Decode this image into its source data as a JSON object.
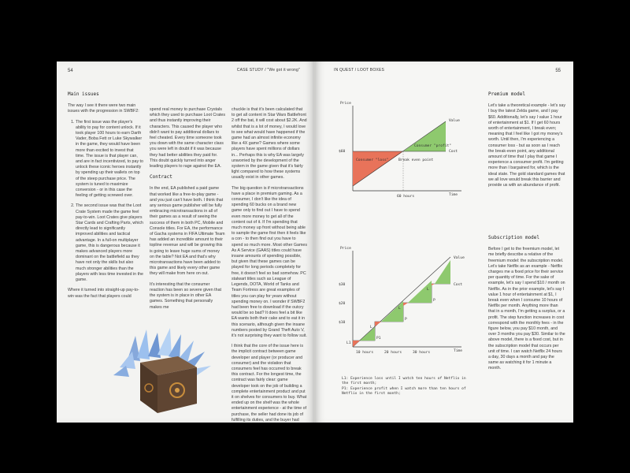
{
  "left_page": {
    "page_number": "54",
    "header": "CASE STUDY / \"We got it wrong\"",
    "col1": {
      "heading": "Main issues",
      "intro": "The way I see it there were two main issues with the progression in SWBF2:",
      "items": [
        "The first issue was the player's ability to pay for content unlock. If it took player 100 hours to earn Darth Vader, Boba Fett or Luke Skywalker in the game, they would have been more than excited to invest that time. The issue is that player can, and are in fact incentivized, to pay to unlock these iconic heroes instantly by spending up their wallets on top of the steep purchase price. The system is tuned to maximize conversion - or in this case the feeling of getting screwed over.",
        "The second issue was that the Loot Crate System made the game feel pay-to-win. Loot Crates give players Star Cards and Crafting Parts, which directly lead to significantly improved abilities and tactical advantage. In a full-on multiplayer game, this is dangerous because it makes advanced players more dominant on the battlefield as they have not only the skills but also much stronger abilities than the players with less time invested in the game."
      ],
      "outro": "Where it turned into straight-up pay-to-win was the fact that players could"
    },
    "col2": {
      "p1": "spend real money to purchase Crystals which they used to purchase Loot Crates and thus instantly improving their characters. This caused the player who didn't want to pay additional dollars to feel cheated. Every time someone took you down with the same character class you were left in doubt if it was because they had better abilities they paid for. This doubt quickly turned into anger leading players to rage against the EA.",
      "heading": "Contract",
      "p2": "In the end, EA published a paid game that worked like a free-to-play game - and you just can't have both. I think that any serious game publisher will be fully embracing microtransactions in all of their games as a result of seeing the success of them in both PC, Mobile and Console titles. For EA, the performance of Gacha systems in FIFA Ultimate Team has added an incredible amount to their topline revenue and will be growing this is going to leave huge sums of money on the table? Not EA and that's why microtransactions have been added to this game and likely every other game they will make from here on out.",
      "p3": "It's interesting that the consumer reaction has been so severe given that the system is in place in other EA games. Something that personally makes me"
    },
    "col3": {
      "p1": "chuckle is that it's been calculated that to get all content in Star Wars Battlefront 2 off the bat, it will cost about $2.2K. And whilst that is a lot of money, I would love to see what would have happened if the game had an almost infinite economy like a 4X game? Games where some players have spent millions of dollars in... Perhaps this is why EA was largely unworried by the development of the system in the game given that it's fairly light compared to how these systems usually exist in other games.",
      "p2": "The big question is if microtransactions have a place in premium gaming. As a consumer, I don't like the idea of spending 60 bucks on a brand new game only to find out I have to spend even more money to get all of the content out of it. If I'm spending that much money up front without being able to sample the game first then it feels like a con - to then find out you have to spend so much more. Most other Games As A Service (GAAS) titles could have insane amounts of spending possible, but given that these games can be played for long periods completely for free, it doesn't feel so bad somehow. PC stalwart titles such as League of Legends, DOTA, World of Tanks and Team Fortress are great examples of titles you can play for years without spending money on. I wonder if SWBF2 had been free to download if the outcry would be so bad? It does feel a bit like EA wants both their cake and to eat it in this scenario, although given the insane numbers posted by Grand Theft Auto V, it's not surprising they want to follow suit.",
      "p3": "I think that the core of the issue here is the implicit contract between game developer and player (or producer and consumer) and the violation that consumers feel has occurred to break this contract. For the longest time, the contract was fairly clear: game developer took on the job of building a complete entertainment product and put it on shelves for consumers to buy. What ended up on the shelf was the whole entertainment experience - at the time of purchase, the seller had done its job of fulfilling its duties, and the buyer had freedom to consume that experience for however long they chose to do so."
    }
  },
  "right_page": {
    "page_number": "55",
    "header": "IN QUEST / LOOT BOXES",
    "premium": {
      "heading": "Premium model",
      "p1": "Let's take a theoretical example - let's say I buy the latest Zelda game, and I pay $60. Additionally, let's say I value 1 hour of entertainment at $1. If I get 60 hours worth of entertainment, I break even; meaning that I feel like I got my money's worth. Until then, I'm experiencing a consumer loss - but as soon as I reach the break-even point, any additional amount of time that I play that game I experience a consumer profit. I'm getting more than I bargained for, which is the ideal state. The gold standard games that we all love would break this barrier and provide us with an abundance of profit."
    },
    "subscription": {
      "heading": "Subscription model",
      "p1": "Before I get to the freemium model, let me briefly describe a relative of the freemium model: the subscription model. Let's take Netflix as an example - Netflix charges me a fixed price for their service per quantity of time. For the sake of example, let's say I spend $10 / month on Netflix. As in the prior example, let's say I value 1 hour of entertainment at $1, I break even when I consume 10 hours of Netflix per month. Anything more than that in a month, I'm getting a surplus, or a profit. The step function increases in cost correspond with the monthly fees - in the figure below, you pay $10 month, and over 3 months you pay $30. Similar to the above model, there is a fixed cost, but in the subscription model that occurs per unit of time. I can watch Netflix 24 hours a day, 30 days a month and pay the same as watching it for 1 minute a month."
    },
    "chart1": {
      "ylabel": "Price",
      "value_label": "Value",
      "cost_label": "Cost",
      "time_label": "Time",
      "y_tick": "$60",
      "x_tick": "60 hours",
      "loss_label": "Consumer \"loss\"",
      "profit_label": "Consumer \"profit\"",
      "bep_label": "Break even point"
    },
    "chart2": {
      "ylabel": "Price",
      "value_label": "Value",
      "cost_label": "Cost",
      "time_label": "Time",
      "y_ticks": [
        "$30",
        "$20",
        "$10"
      ],
      "x_ticks": [
        "10 hours",
        "20 hours",
        "30 hours"
      ],
      "loss_markers": [
        "L1",
        "L",
        "L",
        "L"
      ],
      "profit_markers": [
        "P1",
        "P",
        "P"
      ]
    },
    "legend": {
      "l1": "L1: Experience loss until I watch ten hours of Netflix in the first month;",
      "p1": "P1: Experience profit when I watch more than ten hours of Netflix in the first month;"
    }
  },
  "colors": {
    "loss": "#e8735a",
    "profit": "#8ec96e",
    "highlight_green": "#3a9a3a",
    "paper": "#f3f3f1"
  },
  "image": {
    "description_icon": "crystal-cube-icon"
  }
}
